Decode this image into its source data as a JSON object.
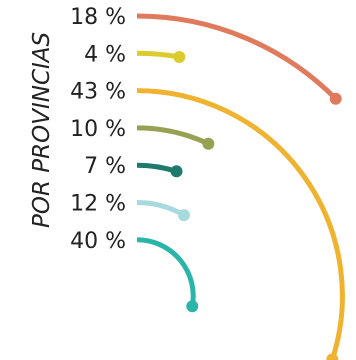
{
  "chart_data": {
    "type": "radial-bar",
    "axis_label": "POR PROVINCIAS",
    "unit": "%",
    "series": [
      {
        "label": "18 %",
        "value": 18,
        "color": "#e07a5c"
      },
      {
        "label": "4 %",
        "value": 4,
        "color": "#dccb2e"
      },
      {
        "label": "43 %",
        "value": 43,
        "color": "#f0b330"
      },
      {
        "label": "10 %",
        "value": 10,
        "color": "#96a152"
      },
      {
        "label": "7 %",
        "value": 7,
        "color": "#1e7a6d"
      },
      {
        "label": "12 %",
        "value": 12,
        "color": "#a7d9df"
      },
      {
        "label": "40 %",
        "value": 40,
        "color": "#2ab5a8"
      }
    ]
  }
}
